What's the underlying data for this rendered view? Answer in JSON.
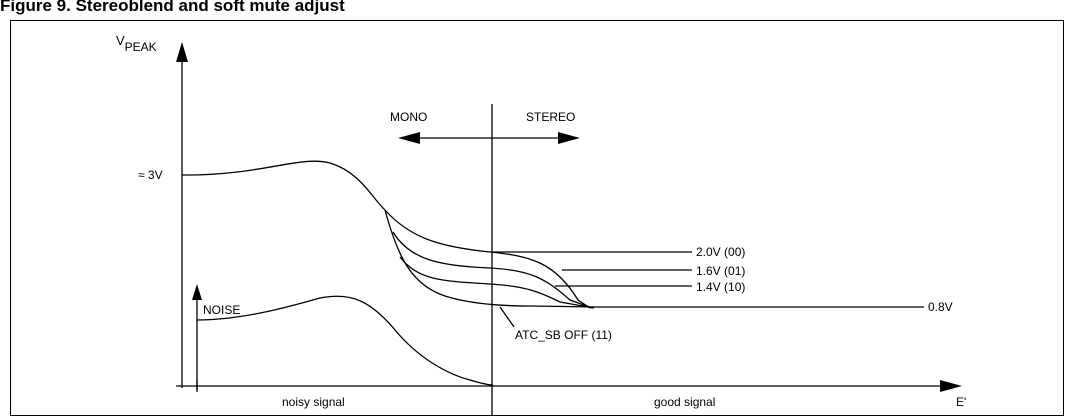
{
  "title": "Figure 9. Stereoblend and soft mute adjust",
  "y_axis_label_main": "V",
  "y_axis_label_sub": "PEAK",
  "x_axis_label": "E'",
  "y_level_label": "≈ 3V",
  "mono_label": "MONO",
  "stereo_label": "STEREO",
  "noise_label": "NOISE",
  "region_labels": {
    "left": "noisy signal",
    "right": "good signal"
  },
  "curve_labels": [
    {
      "text": "2.0V (00)"
    },
    {
      "text": "1.6V (01)"
    },
    {
      "text": "1.4V (10)"
    }
  ],
  "end_level_label": "0.8V",
  "atc_label": "ATC_SB OFF (11)"
}
